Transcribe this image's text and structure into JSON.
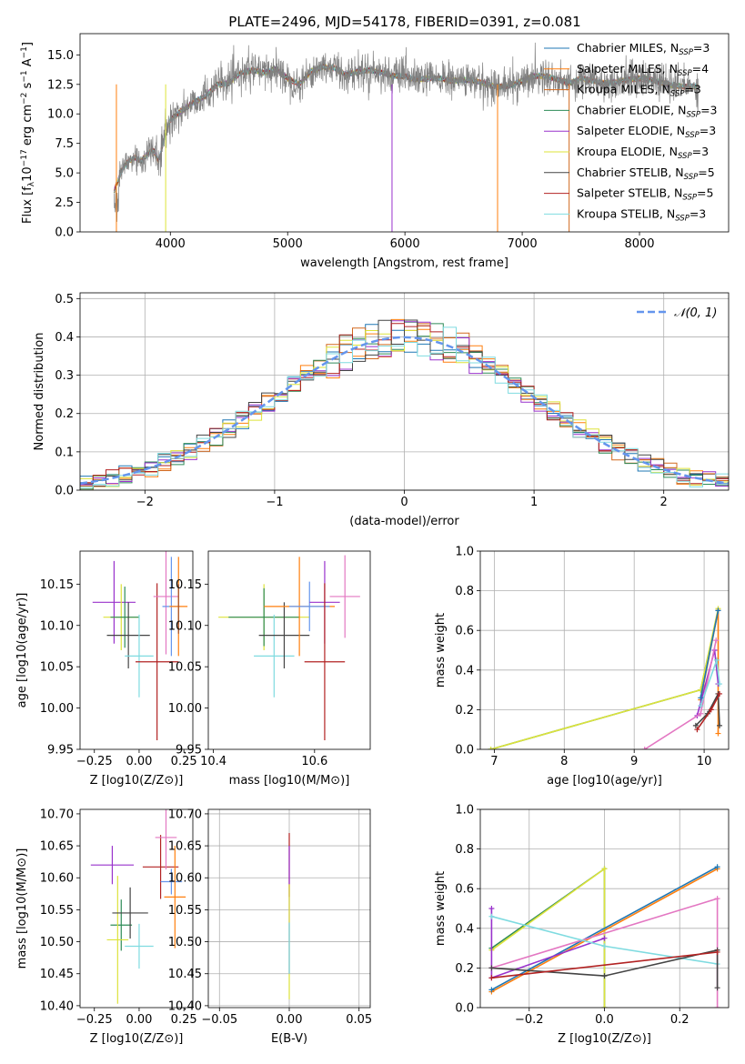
{
  "figure": {
    "title": "PLATE=2496, MJD=54178, FIBERID=0391, z=0.081",
    "colors": {
      "Chabrier MILES": "#1f77b4",
      "Salpeter MILES": "#ff7f0e",
      "Kroupa MILES": "#d2691e",
      "Chabrier ELODIE": "#2e8b57",
      "Salpeter ELODIE": "#9932cc",
      "Kroupa ELODIE": "#dde33a",
      "Chabrier STELIB": "#444444",
      "Salpeter STELIB": "#b22222",
      "Kroupa STELIB": "#7fdbe0",
      "grey_data": "#808080",
      "pink": "#e377c2",
      "cornflower": "#6495ed",
      "yellowgreen": "#9acd32"
    }
  },
  "chart_data": [
    {
      "id": "spectrum",
      "type": "line",
      "xlabel": "wavelength [Angstrom, rest frame]",
      "ylabel": "Flux [f_λ10^-17 erg cm^-2 s^-1 A^-1]",
      "xlim": [
        3230,
        8760
      ],
      "ylim": [
        0,
        16.8
      ],
      "xticks": [
        4000,
        5000,
        6000,
        7000,
        8000
      ],
      "yticks": [
        0.0,
        2.5,
        5.0,
        7.5,
        10.0,
        12.5,
        15.0
      ],
      "legend_position": "right",
      "legend": [
        {
          "label": "Chabrier MILES, N",
          "sub": "SSP",
          "tail": "=3",
          "color": "#1f77b4"
        },
        {
          "label": "Salpeter MILES, N",
          "sub": "SSP",
          "tail": "=4",
          "color": "#ff7f0e"
        },
        {
          "label": "Kroupa MILES, N",
          "sub": "SSP",
          "tail": "=3",
          "color": "#d2691e"
        },
        {
          "label": "Chabrier ELODIE, N",
          "sub": "SSP",
          "tail": "=3",
          "color": "#2e8b57"
        },
        {
          "label": "Salpeter ELODIE, N",
          "sub": "SSP",
          "tail": "=3",
          "color": "#9932cc"
        },
        {
          "label": "Kroupa ELODIE, N",
          "sub": "SSP",
          "tail": "=3",
          "color": "#dde33a"
        },
        {
          "label": "Chabrier STELIB, N",
          "sub": "SSP",
          "tail": "=5",
          "color": "#444444"
        },
        {
          "label": "Salpeter STELIB, N",
          "sub": "SSP",
          "tail": "=5",
          "color": "#b22222"
        },
        {
          "label": "Kroupa STELIB, N",
          "sub": "SSP",
          "tail": "=3",
          "color": "#7fdbe0"
        }
      ],
      "continuum": {
        "x": [
          3520,
          3560,
          3600,
          3650,
          3700,
          3750,
          3800,
          3850,
          3900,
          3950,
          4000,
          4100,
          4200,
          4300,
          4400,
          4500,
          4600,
          4700,
          4800,
          4900,
          5000,
          5100,
          5200,
          5300,
          5400,
          5500,
          5600,
          5700,
          5800,
          5900,
          6000,
          6100,
          6200,
          6300,
          6400,
          6500,
          6600,
          6700,
          6800,
          6900,
          7000,
          7100,
          7200,
          7300,
          7400,
          7500,
          7600,
          7700,
          7800,
          7900,
          8000,
          8100,
          8200,
          8300,
          8400,
          8500
        ],
        "y": [
          3.5,
          4.5,
          5.5,
          6.0,
          6.3,
          6.0,
          6.5,
          7.0,
          6.0,
          8.0,
          9.5,
          10.3,
          11.0,
          11.5,
          12.5,
          12.6,
          13.5,
          13.7,
          13.5,
          13.8,
          13.0,
          12.5,
          13.6,
          14.0,
          13.9,
          13.3,
          13.6,
          13.7,
          13.5,
          13.2,
          13.2,
          12.9,
          13.0,
          13.0,
          12.8,
          12.9,
          12.8,
          12.5,
          12.3,
          12.4,
          12.8,
          13.2,
          13.2,
          12.9,
          12.6,
          13.0,
          12.8,
          12.6,
          12.7,
          12.9,
          13.0,
          12.9,
          12.6,
          12.4,
          12.3,
          12.3
        ]
      }
    },
    {
      "id": "residuals",
      "type": "bar",
      "xlabel": "(data-model)/error",
      "ylabel": "Normed distribution",
      "xlim": [
        -2.5,
        2.5
      ],
      "ylim": [
        0,
        0.515
      ],
      "xticks": [
        -2,
        -1,
        0,
        1,
        2
      ],
      "yticks": [
        0.0,
        0.1,
        0.2,
        0.3,
        0.4,
        0.5
      ],
      "grid": true,
      "legend_position": "top-right",
      "legend": [
        {
          "label": "𝒩(0, 1)",
          "color": "#6495ed"
        }
      ]
    },
    {
      "id": "age_vs_Z",
      "type": "scatter",
      "xlabel": "Z [log10(Z/Z⊙)]",
      "ylabel": "age  [log10(age/yr)]",
      "xlim": [
        -0.33,
        0.3
      ],
      "ylim": [
        9.95,
        10.19
      ],
      "xticks": [
        -0.25,
        0.0,
        0.25
      ],
      "yticks": [
        9.95,
        10.0,
        10.05,
        10.1,
        10.15
      ],
      "points": [
        {
          "x": -0.14,
          "y": 10.128,
          "xerr": 0.12,
          "yerr": 0.05,
          "color": "#9932cc"
        },
        {
          "x": -0.1,
          "y": 10.11,
          "xerr": 0.1,
          "yerr": 0.04,
          "color": "#dde33a"
        },
        {
          "x": -0.08,
          "y": 10.11,
          "xerr": 0.08,
          "yerr": 0.037,
          "color": "#2e8b57"
        },
        {
          "x": -0.06,
          "y": 10.088,
          "xerr": 0.12,
          "yerr": 0.04,
          "color": "#444444"
        },
        {
          "x": 0.0,
          "y": 10.063,
          "xerr": 0.08,
          "yerr": 0.05,
          "color": "#7fdbe0"
        },
        {
          "x": 0.1,
          "y": 10.056,
          "xerr": 0.12,
          "yerr": 0.095,
          "color": "#b22222"
        },
        {
          "x": 0.15,
          "y": 10.135,
          "xerr": 0.07,
          "yerr": 0.07,
          "color": "#e377c2"
        },
        {
          "x": 0.18,
          "y": 10.123,
          "xerr": 0.05,
          "yerr": 0.06,
          "color": "#6495ed"
        },
        {
          "x": 0.22,
          "y": 10.123,
          "xerr": 0.05,
          "yerr": 0.06,
          "color": "#ff7f0e"
        },
        {
          "x": 0.22,
          "y": 10.12,
          "xerr": 0.0,
          "yerr": 0.03,
          "color": "#a0522d"
        }
      ]
    },
    {
      "id": "age_vs_mass",
      "type": "scatter",
      "xlabel": "mass [log10(M/M⊙)]",
      "ylabel": "",
      "xlim": [
        10.39,
        10.71
      ],
      "ylim": [
        9.95,
        10.19
      ],
      "xticks": [
        10.4,
        10.6
      ],
      "yticks": [
        9.95,
        10.0,
        10.05,
        10.1,
        10.15
      ],
      "points": [
        {
          "x": 10.5,
          "y": 10.11,
          "xerr": 0.09,
          "yerr": 0.04,
          "color": "#dde33a"
        },
        {
          "x": 10.5,
          "y": 10.11,
          "xerr": 0.07,
          "yerr": 0.035,
          "color": "#2e8b57"
        },
        {
          "x": 10.52,
          "y": 10.063,
          "xerr": 0.04,
          "yerr": 0.05,
          "color": "#7fdbe0"
        },
        {
          "x": 10.54,
          "y": 10.088,
          "xerr": 0.05,
          "yerr": 0.04,
          "color": "#444444"
        },
        {
          "x": 10.57,
          "y": 10.123,
          "xerr": 0.07,
          "yerr": 0.06,
          "color": "#ff7f0e"
        },
        {
          "x": 10.59,
          "y": 10.123,
          "xerr": 0.04,
          "yerr": 0.03,
          "color": "#6495ed"
        },
        {
          "x": 10.62,
          "y": 10.128,
          "xerr": 0.03,
          "yerr": 0.05,
          "color": "#9932cc"
        },
        {
          "x": 10.62,
          "y": 10.056,
          "xerr": 0.04,
          "yerr": 0.095,
          "color": "#b22222"
        },
        {
          "x": 10.66,
          "y": 10.135,
          "xerr": 0.03,
          "yerr": 0.05,
          "color": "#e377c2"
        }
      ]
    },
    {
      "id": "weight_vs_age",
      "type": "line",
      "xlabel": "age  [log10(age/yr)]",
      "ylabel": "mass weight",
      "xlim": [
        6.8,
        10.35
      ],
      "ylim": [
        0,
        1.0
      ],
      "xticks": [
        7,
        8,
        9,
        10
      ],
      "yticks": [
        0.0,
        0.2,
        0.4,
        0.6,
        0.8,
        1.0
      ],
      "grid": true,
      "series": [
        {
          "color": "#2e8b57",
          "x": [
            6.95,
            9.95,
            10.2
          ],
          "y": [
            0.0,
            0.3,
            0.7
          ]
        },
        {
          "color": "#dde33a",
          "x": [
            6.95,
            9.95,
            10.2
          ],
          "y": [
            0.0,
            0.3,
            0.71
          ]
        },
        {
          "color": "#ff7f0e",
          "x": [
            9.95,
            10.2,
            10.2
          ],
          "y": [
            0.25,
            0.7,
            0.08
          ]
        },
        {
          "color": "#9932cc",
          "x": [
            9.9,
            10.15,
            10.2
          ],
          "y": [
            0.17,
            0.5,
            0.33
          ]
        },
        {
          "color": "#e377c2",
          "x": [
            9.15,
            9.95,
            10.17
          ],
          "y": [
            0.0,
            0.18,
            0.55
          ]
        },
        {
          "color": "#444444",
          "x": [
            9.88,
            10.05,
            10.2,
            10.22
          ],
          "y": [
            0.12,
            0.18,
            0.28,
            0.12
          ]
        },
        {
          "color": "#b22222",
          "x": [
            9.9,
            10.1,
            10.22
          ],
          "y": [
            0.1,
            0.2,
            0.28
          ]
        },
        {
          "color": "#7fdbe0",
          "x": [
            9.95,
            10.18,
            10.22
          ],
          "y": [
            0.22,
            0.45,
            0.33
          ]
        },
        {
          "color": "#1f77b4",
          "x": [
            9.95,
            10.2
          ],
          "y": [
            0.26,
            0.7
          ]
        }
      ]
    },
    {
      "id": "mass_vs_Z",
      "type": "scatter",
      "xlabel": "Z [log10(Z/Z⊙)]",
      "ylabel": "mass [log10(M/M⊙)]",
      "xlim": [
        -0.33,
        0.3
      ],
      "ylim": [
        10.397,
        10.707
      ],
      "xticks": [
        -0.25,
        0.0,
        0.25
      ],
      "yticks": [
        10.4,
        10.45,
        10.5,
        10.55,
        10.6,
        10.65,
        10.7
      ],
      "points": [
        {
          "x": -0.15,
          "y": 10.62,
          "xerr": 0.12,
          "yerr": 0.03,
          "color": "#9932cc"
        },
        {
          "x": -0.1,
          "y": 10.526,
          "xerr": 0.06,
          "yerr": 0.04,
          "color": "#2e8b57"
        },
        {
          "x": -0.12,
          "y": 10.503,
          "xerr": 0.06,
          "yerr": 0.1,
          "color": "#dde33a"
        },
        {
          "x": -0.05,
          "y": 10.545,
          "xerr": 0.1,
          "yerr": 0.04,
          "color": "#444444"
        },
        {
          "x": 0.0,
          "y": 10.493,
          "xerr": 0.08,
          "yerr": 0.035,
          "color": "#7fdbe0"
        },
        {
          "x": 0.12,
          "y": 10.617,
          "xerr": 0.1,
          "yerr": 0.05,
          "color": "#b22222"
        },
        {
          "x": 0.15,
          "y": 10.663,
          "xerr": 0.06,
          "yerr": 0.05,
          "color": "#e377c2"
        },
        {
          "x": 0.18,
          "y": 10.594,
          "xerr": 0.06,
          "yerr": 0.02,
          "color": "#6495ed"
        },
        {
          "x": 0.2,
          "y": 10.57,
          "xerr": 0.06,
          "yerr": 0.08,
          "color": "#ff7f0e"
        }
      ]
    },
    {
      "id": "mass_vs_ebv",
      "type": "scatter",
      "xlabel": "E(B-V)",
      "ylabel": "",
      "xlim": [
        -0.058,
        0.058
      ],
      "ylim": [
        10.397,
        10.707
      ],
      "xticks": [
        -0.05,
        0.0,
        0.05
      ],
      "yticks": [
        10.4,
        10.45,
        10.5,
        10.55,
        10.6,
        10.65,
        10.7
      ],
      "grid": true,
      "points": [
        {
          "x": 0.0,
          "y": 10.62,
          "xerr": 0.0,
          "yerr": 0.05,
          "color": "#b22222"
        },
        {
          "x": 0.0,
          "y": 10.55,
          "xerr": 0.0,
          "yerr": 0.1,
          "color": "#9932cc"
        },
        {
          "x": 0.0,
          "y": 10.5,
          "xerr": 0.0,
          "yerr": 0.09,
          "color": "#dde33a"
        },
        {
          "x": 0.0,
          "y": 10.49,
          "xerr": 0.0,
          "yerr": 0.04,
          "color": "#7fdbe0"
        }
      ]
    },
    {
      "id": "weight_vs_Z",
      "type": "line",
      "xlabel": "Z [log10(Z/Z⊙)]",
      "ylabel": "mass weight",
      "xlim": [
        -0.33,
        0.33
      ],
      "ylim": [
        0,
        1.0
      ],
      "xticks": [
        -0.2,
        0.0,
        0.2
      ],
      "yticks": [
        0.0,
        0.2,
        0.4,
        0.6,
        0.8,
        1.0
      ],
      "grid": true,
      "series": [
        {
          "color": "#2e8b57",
          "x": [
            -0.3,
            0.0,
            0.0
          ],
          "y": [
            0.3,
            0.7,
            0.0
          ]
        },
        {
          "color": "#dde33a",
          "x": [
            -0.3,
            0.0,
            0.0
          ],
          "y": [
            0.29,
            0.7,
            0.0
          ]
        },
        {
          "color": "#ff7f0e",
          "x": [
            -0.3,
            0.3
          ],
          "y": [
            0.08,
            0.7
          ]
        },
        {
          "color": "#1f77b4",
          "x": [
            -0.3,
            0.3
          ],
          "y": [
            0.09,
            0.71
          ]
        },
        {
          "color": "#9932cc",
          "x": [
            -0.3,
            -0.3,
            0.0
          ],
          "y": [
            0.5,
            0.15,
            0.35
          ]
        },
        {
          "color": "#e377c2",
          "x": [
            -0.3,
            0.3,
            0.3
          ],
          "y": [
            0.2,
            0.55,
            0.0
          ]
        },
        {
          "color": "#7fdbe0",
          "x": [
            -0.3,
            0.0,
            0.3
          ],
          "y": [
            0.46,
            0.31,
            0.22
          ]
        },
        {
          "color": "#444444",
          "x": [
            -0.3,
            0.0,
            0.3,
            0.3
          ],
          "y": [
            0.2,
            0.16,
            0.29,
            0.1
          ]
        },
        {
          "color": "#b22222",
          "x": [
            -0.3,
            0.3
          ],
          "y": [
            0.15,
            0.28
          ]
        }
      ]
    }
  ]
}
